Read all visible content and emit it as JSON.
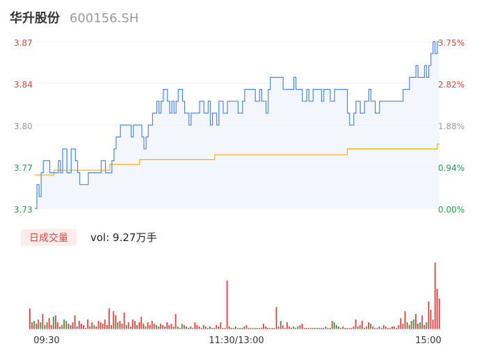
{
  "header": {
    "name": "华升股份",
    "code": "600156.SH"
  },
  "colors": {
    "up": "#e84141",
    "down": "#1aa34a",
    "flat": "#9a9a9a",
    "price_line": "#4a86e8",
    "avg_line": "#f5b324"
  },
  "volume_panel": {
    "period_tag": "日成交量",
    "vol_label": "vol: 9.27万手"
  },
  "chart_data": [
    {
      "type": "line",
      "y_left_ticks": [
        "3.87",
        "3.84",
        "3.80",
        "3.77",
        "3.73"
      ],
      "y_right_ticks": [
        "3.75%",
        "2.82%",
        "1.88%",
        "0.94%",
        "0.00%"
      ],
      "ylim": [
        3.73,
        3.87
      ],
      "series": [
        {
          "key": "price",
          "values": [
            3.73,
            3.75,
            3.74,
            3.76,
            3.77,
            3.77,
            3.77,
            3.76,
            3.76,
            3.76,
            3.76,
            3.77,
            3.76,
            3.78,
            3.78,
            3.76,
            3.76,
            3.78,
            3.78,
            3.77,
            3.76,
            3.75,
            3.75,
            3.75,
            3.75,
            3.76,
            3.76,
            3.76,
            3.76,
            3.76,
            3.76,
            3.77,
            3.77,
            3.76,
            3.76,
            3.76,
            3.77,
            3.78,
            3.79,
            3.79,
            3.8,
            3.8,
            3.8,
            3.8,
            3.8,
            3.79,
            3.8,
            3.8,
            3.8,
            3.8,
            3.79,
            3.78,
            3.79,
            3.8,
            3.8,
            3.81,
            3.81,
            3.82,
            3.81,
            3.82,
            3.83,
            3.83,
            3.82,
            3.81,
            3.82,
            3.81,
            3.82,
            3.83,
            3.83,
            3.82,
            3.81,
            3.81,
            3.8,
            3.81,
            3.81,
            3.81,
            3.81,
            3.82,
            3.82,
            3.81,
            3.81,
            3.82,
            3.8,
            3.81,
            3.81,
            3.8,
            3.82,
            3.82,
            3.81,
            3.81,
            3.82,
            3.82,
            3.82,
            3.82,
            3.82,
            3.81,
            3.81,
            3.82,
            3.83,
            3.83,
            3.83,
            3.83,
            3.83,
            3.82,
            3.82,
            3.83,
            3.82,
            3.82,
            3.81,
            3.83,
            3.84,
            3.84,
            3.84,
            3.84,
            3.84,
            3.84,
            3.83,
            3.83,
            3.83,
            3.83,
            3.83,
            3.84,
            3.83,
            3.83,
            3.83,
            3.82,
            3.82,
            3.83,
            3.82,
            3.82,
            3.83,
            3.83,
            3.83,
            3.83,
            3.82,
            3.83,
            3.83,
            3.83,
            3.82,
            3.82,
            3.83,
            3.83,
            3.83,
            3.83,
            3.83,
            3.83,
            3.81,
            3.8,
            3.8,
            3.81,
            3.82,
            3.82,
            3.81,
            3.81,
            3.82,
            3.82,
            3.83,
            3.82,
            3.82,
            3.81,
            3.81,
            3.82,
            3.82,
            3.82,
            3.82,
            3.82,
            3.82,
            3.82,
            3.82,
            3.82,
            3.82,
            3.82,
            3.83,
            3.83,
            3.83,
            3.84,
            3.84,
            3.84,
            3.85,
            3.84,
            3.84,
            3.84,
            3.85,
            3.84,
            3.85,
            3.86,
            3.87,
            3.86,
            3.87,
            3.87
          ]
        },
        {
          "key": "avg",
          "values": [
            3.758,
            3.758,
            3.758,
            3.758,
            3.758,
            3.758,
            3.758,
            3.758,
            3.758,
            3.762,
            3.762,
            3.762,
            3.762,
            3.762,
            3.762,
            3.762,
            3.762,
            3.762,
            3.762,
            3.762,
            3.762,
            3.762,
            3.762,
            3.762,
            3.762,
            3.762,
            3.762,
            3.762,
            3.762,
            3.762,
            3.762,
            3.762,
            3.762,
            3.762,
            3.762,
            3.767,
            3.767,
            3.767,
            3.767,
            3.767,
            3.767,
            3.767,
            3.767,
            3.767,
            3.767,
            3.767,
            3.767,
            3.767,
            3.767,
            3.771,
            3.771,
            3.771,
            3.771,
            3.771,
            3.771,
            3.771,
            3.771,
            3.771,
            3.771,
            3.771,
            3.771,
            3.771,
            3.771,
            3.771,
            3.771,
            3.771,
            3.771,
            3.771,
            3.771,
            3.771,
            3.771,
            3.771,
            3.771,
            3.771,
            3.771,
            3.771,
            3.771,
            3.771,
            3.771,
            3.771,
            3.771,
            3.771,
            3.771,
            3.771,
            3.775,
            3.775,
            3.775,
            3.775,
            3.775,
            3.775,
            3.775,
            3.775,
            3.775,
            3.775,
            3.775,
            3.775,
            3.775,
            3.775,
            3.775,
            3.775,
            3.775,
            3.775,
            3.775,
            3.775,
            3.775,
            3.775,
            3.775,
            3.775,
            3.775,
            3.775,
            3.775,
            3.775,
            3.775,
            3.775,
            3.775,
            3.775,
            3.775,
            3.775,
            3.775,
            3.775,
            3.775,
            3.775,
            3.775,
            3.775,
            3.775,
            3.775,
            3.775,
            3.775,
            3.775,
            3.775,
            3.775,
            3.775,
            3.775,
            3.775,
            3.775,
            3.775,
            3.775,
            3.775,
            3.775,
            3.775,
            3.775,
            3.775,
            3.775,
            3.775,
            3.775,
            3.775,
            3.78,
            3.78,
            3.78,
            3.78,
            3.78,
            3.78,
            3.78,
            3.78,
            3.78,
            3.78,
            3.78,
            3.78,
            3.78,
            3.78,
            3.78,
            3.78,
            3.78,
            3.78,
            3.78,
            3.78,
            3.78,
            3.78,
            3.78,
            3.78,
            3.78,
            3.78,
            3.78,
            3.78,
            3.78,
            3.78,
            3.78,
            3.78,
            3.78,
            3.78,
            3.78,
            3.78,
            3.78,
            3.78,
            3.78,
            3.78,
            3.78,
            3.78,
            3.784,
            3.784
          ]
        }
      ]
    },
    {
      "type": "bar",
      "x_ticks": [
        "09:30",
        "11:30/13:00",
        "15:00"
      ],
      "values": [
        0.3,
        0.1,
        0.12,
        0.08,
        0.14,
        0.1,
        0.22,
        0.06,
        0.1,
        0.16,
        0.06,
        0.18,
        0.2,
        0.1,
        0.04,
        0.06,
        0.14,
        0.12,
        0.08,
        0.06,
        0.1,
        0.2,
        0.04,
        0.12,
        0.08,
        0.06,
        0.02,
        0.14,
        0.04,
        0.1,
        0.06,
        0.04,
        0.12,
        0.1,
        0.08,
        0.14,
        0.06,
        0.3,
        0.06,
        0.26,
        0.2,
        0.1,
        0.12,
        0.08,
        0.24,
        0.06,
        0.1,
        0.04,
        0.14,
        0.12,
        0.06,
        0.1,
        0.18,
        0.08,
        0.04,
        0.1,
        0.06,
        0.12,
        0.08,
        0.06,
        0.04,
        0.08,
        0.06,
        0.04,
        0.1,
        0.06,
        0.08,
        0.04,
        0.22,
        0.04,
        0.02,
        0.08,
        0.06,
        0.04,
        0.02,
        0.04,
        0.02,
        0.1,
        0.06,
        0.04,
        0.02,
        0.06,
        0.04,
        0.02,
        0.04,
        0.02,
        0.02,
        0.06,
        0.04,
        0.1,
        0.02,
        0.02,
        0.7,
        0.04,
        0.02,
        0.02,
        0.04,
        0.02,
        0.02,
        0.02,
        0.04,
        0.06,
        0.02,
        0.02,
        0.02,
        0.02,
        0.02,
        0.02,
        0.02,
        0.08,
        0.04,
        0.02,
        0.02,
        0.02,
        0.02,
        0.32,
        0.04,
        0.12,
        0.06,
        0.02,
        0.1,
        0.04,
        0.02,
        0.04,
        0.02,
        0.04,
        0.06,
        0.08,
        0.02,
        0.02,
        0.02,
        0.02,
        0.02,
        0.02,
        0.02,
        0.02,
        0.02,
        0.02,
        0.04,
        0.02,
        0.02,
        0.12,
        0.1,
        0.06,
        0.04,
        0.02,
        0.04,
        0.02,
        0.02,
        0.02,
        0.02,
        0.04,
        0.14,
        0.04,
        0.06,
        0.12,
        0.02,
        0.04,
        0.1,
        0.08,
        0.04,
        0.02,
        0.02,
        0.04,
        0.02,
        0.06,
        0.04,
        0.02,
        0.02,
        0.04,
        0.04,
        0.02,
        0.06,
        0.16,
        0.08,
        0.26,
        0.1,
        0.06,
        0.12,
        0.14,
        0.22,
        0.08,
        0.1,
        0.2,
        0.06,
        0.1,
        0.4,
        0.28,
        0.14,
        0.96,
        0.58,
        0.44
      ],
      "colors": [
        "up",
        "up",
        "down",
        "up",
        "up",
        "down",
        "up",
        "down",
        "up",
        "up",
        "up",
        "down",
        "up",
        "up",
        "down",
        "up",
        "down",
        "up",
        "down",
        "up",
        "up",
        "up",
        "down",
        "up",
        "up",
        "up",
        "down",
        "up",
        "up",
        "up",
        "down",
        "up",
        "up",
        "up",
        "up",
        "up",
        "up",
        "up",
        "down",
        "up",
        "up",
        "down",
        "up",
        "up",
        "up",
        "down",
        "up",
        "up",
        "up",
        "up",
        "down",
        "up",
        "up",
        "up",
        "down",
        "up",
        "up",
        "up",
        "up",
        "down",
        "up",
        "up",
        "up",
        "down",
        "up",
        "up",
        "up",
        "down",
        "up",
        "down",
        "up",
        "down",
        "up",
        "down",
        "up",
        "up",
        "down",
        "up",
        "up",
        "up",
        "down",
        "up",
        "down",
        "up",
        "up",
        "down",
        "up",
        "up",
        "up",
        "up",
        "down",
        "up",
        "up",
        "up",
        "up",
        "up",
        "down",
        "up",
        "down",
        "up",
        "down",
        "up",
        "up",
        "up",
        "down",
        "up",
        "down",
        "up",
        "up",
        "up",
        "up",
        "up",
        "down",
        "up",
        "up",
        "up",
        "up",
        "down",
        "up",
        "up",
        "up",
        "up",
        "up",
        "down",
        "up",
        "down",
        "up",
        "up",
        "up",
        "up",
        "down",
        "up",
        "up",
        "up",
        "down",
        "up",
        "up",
        "up",
        "down",
        "up",
        "up",
        "up",
        "down",
        "down",
        "up",
        "down",
        "up",
        "up",
        "down",
        "up",
        "up",
        "up",
        "up",
        "down",
        "up",
        "up",
        "down",
        "up",
        "up",
        "down",
        "up",
        "up",
        "up",
        "down",
        "up",
        "up",
        "down",
        "up",
        "up",
        "up",
        "up",
        "down",
        "up",
        "up",
        "up",
        "up",
        "down",
        "up",
        "up",
        "down",
        "up",
        "up",
        "down",
        "up",
        "up",
        "down",
        "up",
        "up",
        "up"
      ]
    }
  ]
}
